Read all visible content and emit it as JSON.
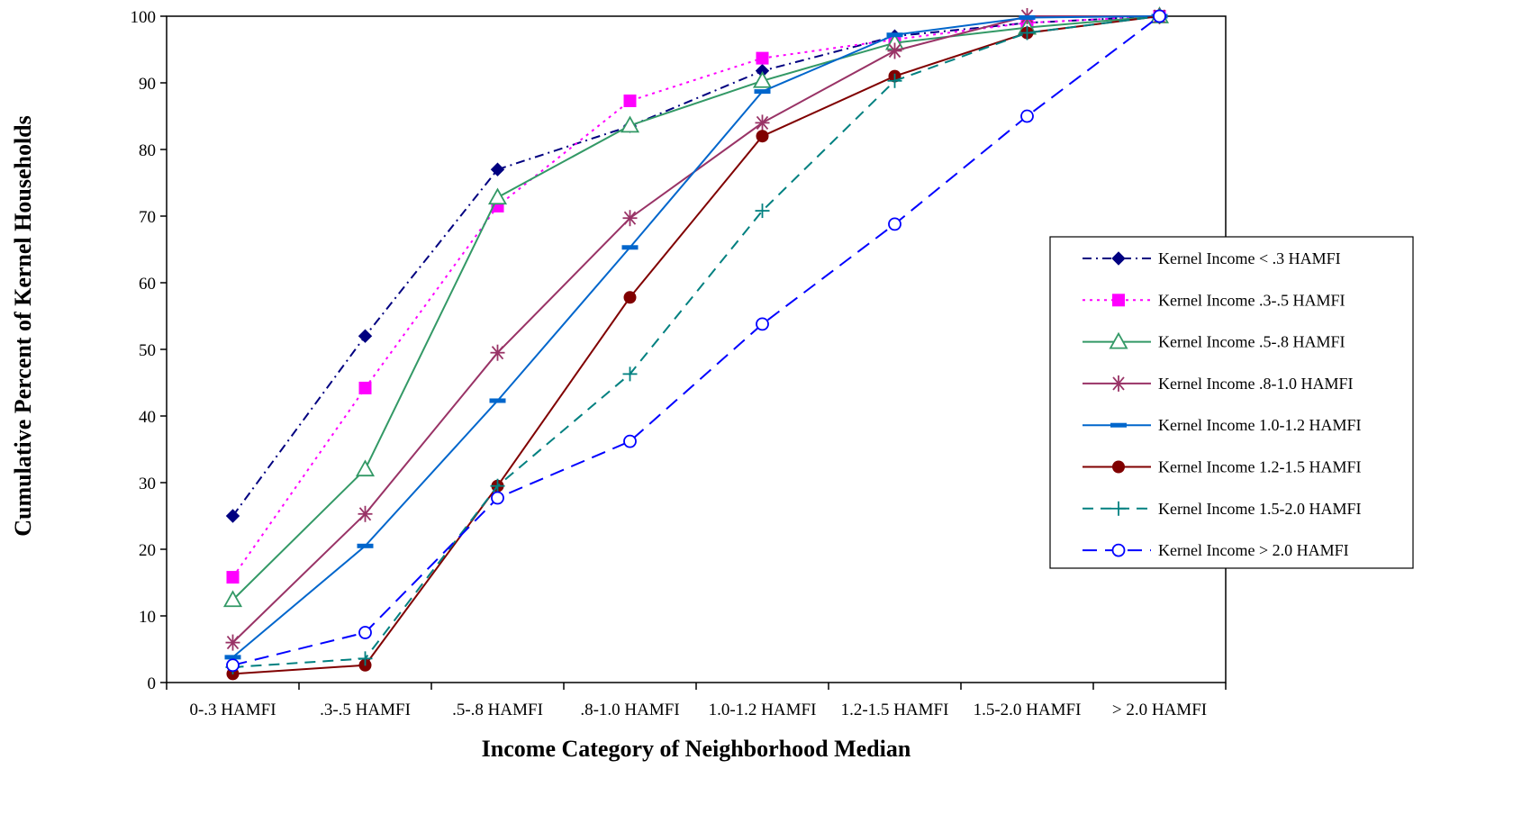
{
  "chart_data": {
    "type": "line",
    "title": "",
    "xlabel": "Income Category of Neighborhood Median",
    "ylabel": "Cumulative Percent of Kernel Households",
    "ylim": [
      0,
      100
    ],
    "yticks": [
      0,
      10,
      20,
      30,
      40,
      50,
      60,
      70,
      80,
      90,
      100
    ],
    "categories": [
      "0-.3 HAMFI",
      ".3-.5 HAMFI",
      ".5-.8 HAMFI",
      ".8-1.0 HAMFI",
      "1.0-1.2 HAMFI",
      "1.2-1.5 HAMFI",
      "1.5-2.0 HAMFI",
      "> 2.0  HAMFI"
    ],
    "grid": false,
    "legend_position": "right",
    "series": [
      {
        "name": "Kernel Income < .3 HAMFI",
        "color": "#000080",
        "dash": "dashdot",
        "marker": "diamond",
        "values": [
          25,
          52,
          77,
          83.5,
          91.8,
          97,
          99,
          100
        ]
      },
      {
        "name": "Kernel Income .3-.5 HAMFI",
        "color": "#ff00ff",
        "dash": "dot",
        "marker": "square",
        "values": [
          15.8,
          44.2,
          71.5,
          87.3,
          93.7,
          96.5,
          99,
          100
        ]
      },
      {
        "name": "Kernel Income .5-.8 HAMFI",
        "color": "#339966",
        "dash": "solid",
        "marker": "triangle",
        "values": [
          12.4,
          32,
          72.8,
          83.6,
          90.3,
          96,
          98.3,
          100
        ]
      },
      {
        "name": "Kernel Income .8-1.0 HAMFI",
        "color": "#993366",
        "dash": "solid",
        "marker": "star",
        "values": [
          6,
          25.3,
          49.5,
          69.7,
          84,
          94.8,
          100,
          100
        ]
      },
      {
        "name": "Kernel Income 1.0-1.2 HAMFI",
        "color": "#0066cc",
        "dash": "solid",
        "marker": "bar",
        "values": [
          3.8,
          20.5,
          42.3,
          65.3,
          88.7,
          97.2,
          99.8,
          100
        ]
      },
      {
        "name": "Kernel Income 1.2-1.5 HAMFI",
        "color": "#800000",
        "dash": "solid",
        "marker": "circle-filled",
        "values": [
          1.3,
          2.6,
          29.5,
          57.8,
          82,
          91,
          97.5,
          100
        ]
      },
      {
        "name": "Kernel Income 1.5-2.0 HAMFI",
        "color": "#008080",
        "dash": "dash",
        "marker": "plus",
        "values": [
          2.3,
          3.6,
          29.5,
          46.3,
          70.8,
          90.3,
          97.5,
          100
        ]
      },
      {
        "name": "Kernel Income > 2.0 HAMFI",
        "color": "#0000ff",
        "dash": "longdash",
        "marker": "circle-open",
        "values": [
          2.6,
          7.5,
          27.7,
          36.2,
          53.8,
          68.8,
          85,
          100
        ]
      }
    ]
  }
}
